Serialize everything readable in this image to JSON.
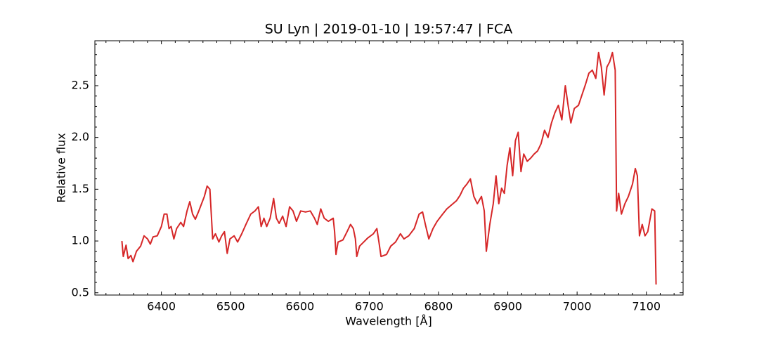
{
  "chart_data": {
    "type": "line",
    "title": "SU Lyn | 2019-01-10 | 19:57:47 | FCA",
    "x_label": "Wavelength [Å]",
    "y_label": "Relative flux",
    "color": "#d62728",
    "xlim": [
      6304,
      7153
    ],
    "ylim": [
      0.478,
      2.934
    ],
    "xticks": [
      6400,
      6500,
      6600,
      6700,
      6800,
      6900,
      7000,
      7100
    ],
    "yticks": [
      0.5,
      {
        "value": 1,
        "label": "1.0"
      },
      1.5,
      {
        "value": 2,
        "label": "2.0"
      },
      2.5
    ],
    "x": [
      6343,
      6345,
      6349,
      6352,
      6356,
      6359,
      6364,
      6370,
      6375,
      6380,
      6384,
      6388,
      6394,
      6400,
      6404,
      6408,
      6411,
      6414,
      6418,
      6422,
      6428,
      6432,
      6437,
      6441,
      6445,
      6449,
      6454,
      6458,
      6462,
      6466,
      6470,
      6472,
      6474,
      6478,
      6483,
      6487,
      6491,
      6495,
      6499,
      6505,
      6510,
      6516,
      6522,
      6529,
      6535,
      6540,
      6544,
      6548,
      6552,
      6557,
      6562,
      6566,
      6570,
      6575,
      6580,
      6585,
      6590,
      6595,
      6601,
      6608,
      6615,
      6621,
      6625,
      6630,
      6635,
      6641,
      6648,
      6650,
      6652,
      6655,
      6662,
      6668,
      6673,
      6677,
      6680,
      6682,
      6686,
      6692,
      6698,
      6706,
      6711,
      6714,
      6717,
      6725,
      6731,
      6738,
      6745,
      6750,
      6757,
      6765,
      6772,
      6777,
      6781,
      6786,
      6792,
      6798,
      6806,
      6812,
      6819,
      6826,
      6831,
      6836,
      6841,
      6846,
      6851,
      6856,
      6862,
      6866,
      6869,
      6874,
      6879,
      6883,
      6887,
      6891,
      6895,
      6899,
      6903,
      6907,
      6911,
      6915,
      6919,
      6923,
      6928,
      6933,
      6938,
      6943,
      6948,
      6953,
      6958,
      6963,
      6968,
      6973,
      6978,
      6983,
      6987,
      6991,
      6996,
      7002,
      7007,
      7012,
      7017,
      7022,
      7027,
      7031,
      7035,
      7039,
      7043,
      7047,
      7051,
      7055,
      7057,
      7060,
      7064,
      7069,
      7074,
      7080,
      7084,
      7087,
      7090,
      7094,
      7098,
      7102,
      7108,
      7112,
      7114
    ],
    "values": [
      1.0,
      0.85,
      0.96,
      0.83,
      0.86,
      0.8,
      0.9,
      0.95,
      1.05,
      1.02,
      0.97,
      1.04,
      1.05,
      1.14,
      1.26,
      1.26,
      1.12,
      1.14,
      1.02,
      1.12,
      1.18,
      1.14,
      1.29,
      1.38,
      1.26,
      1.21,
      1.29,
      1.36,
      1.43,
      1.53,
      1.5,
      1.26,
      1.02,
      1.07,
      0.99,
      1.05,
      1.09,
      0.88,
      1.02,
      1.05,
      0.99,
      1.07,
      1.16,
      1.26,
      1.29,
      1.33,
      1.14,
      1.22,
      1.14,
      1.22,
      1.41,
      1.22,
      1.17,
      1.24,
      1.14,
      1.33,
      1.29,
      1.19,
      1.29,
      1.28,
      1.29,
      1.22,
      1.16,
      1.31,
      1.22,
      1.19,
      1.22,
      1.09,
      0.87,
      0.99,
      1.01,
      1.09,
      1.16,
      1.12,
      1.02,
      0.85,
      0.95,
      0.99,
      1.03,
      1.07,
      1.12,
      0.99,
      0.85,
      0.87,
      0.95,
      0.99,
      1.07,
      1.02,
      1.05,
      1.12,
      1.26,
      1.28,
      1.16,
      1.02,
      1.12,
      1.19,
      1.26,
      1.31,
      1.35,
      1.39,
      1.44,
      1.51,
      1.55,
      1.6,
      1.43,
      1.36,
      1.43,
      1.29,
      0.9,
      1.16,
      1.36,
      1.63,
      1.36,
      1.51,
      1.46,
      1.73,
      1.9,
      1.63,
      1.97,
      2.05,
      1.67,
      1.84,
      1.77,
      1.8,
      1.84,
      1.87,
      1.94,
      2.07,
      2.0,
      2.14,
      2.24,
      2.31,
      2.17,
      2.5,
      2.31,
      2.14,
      2.28,
      2.31,
      2.41,
      2.51,
      2.62,
      2.65,
      2.57,
      2.82,
      2.68,
      2.41,
      2.68,
      2.73,
      2.82,
      2.65,
      1.29,
      1.46,
      1.26,
      1.36,
      1.43,
      1.55,
      1.7,
      1.63,
      1.05,
      1.16,
      1.05,
      1.09,
      1.31,
      1.29,
      0.58
    ]
  }
}
